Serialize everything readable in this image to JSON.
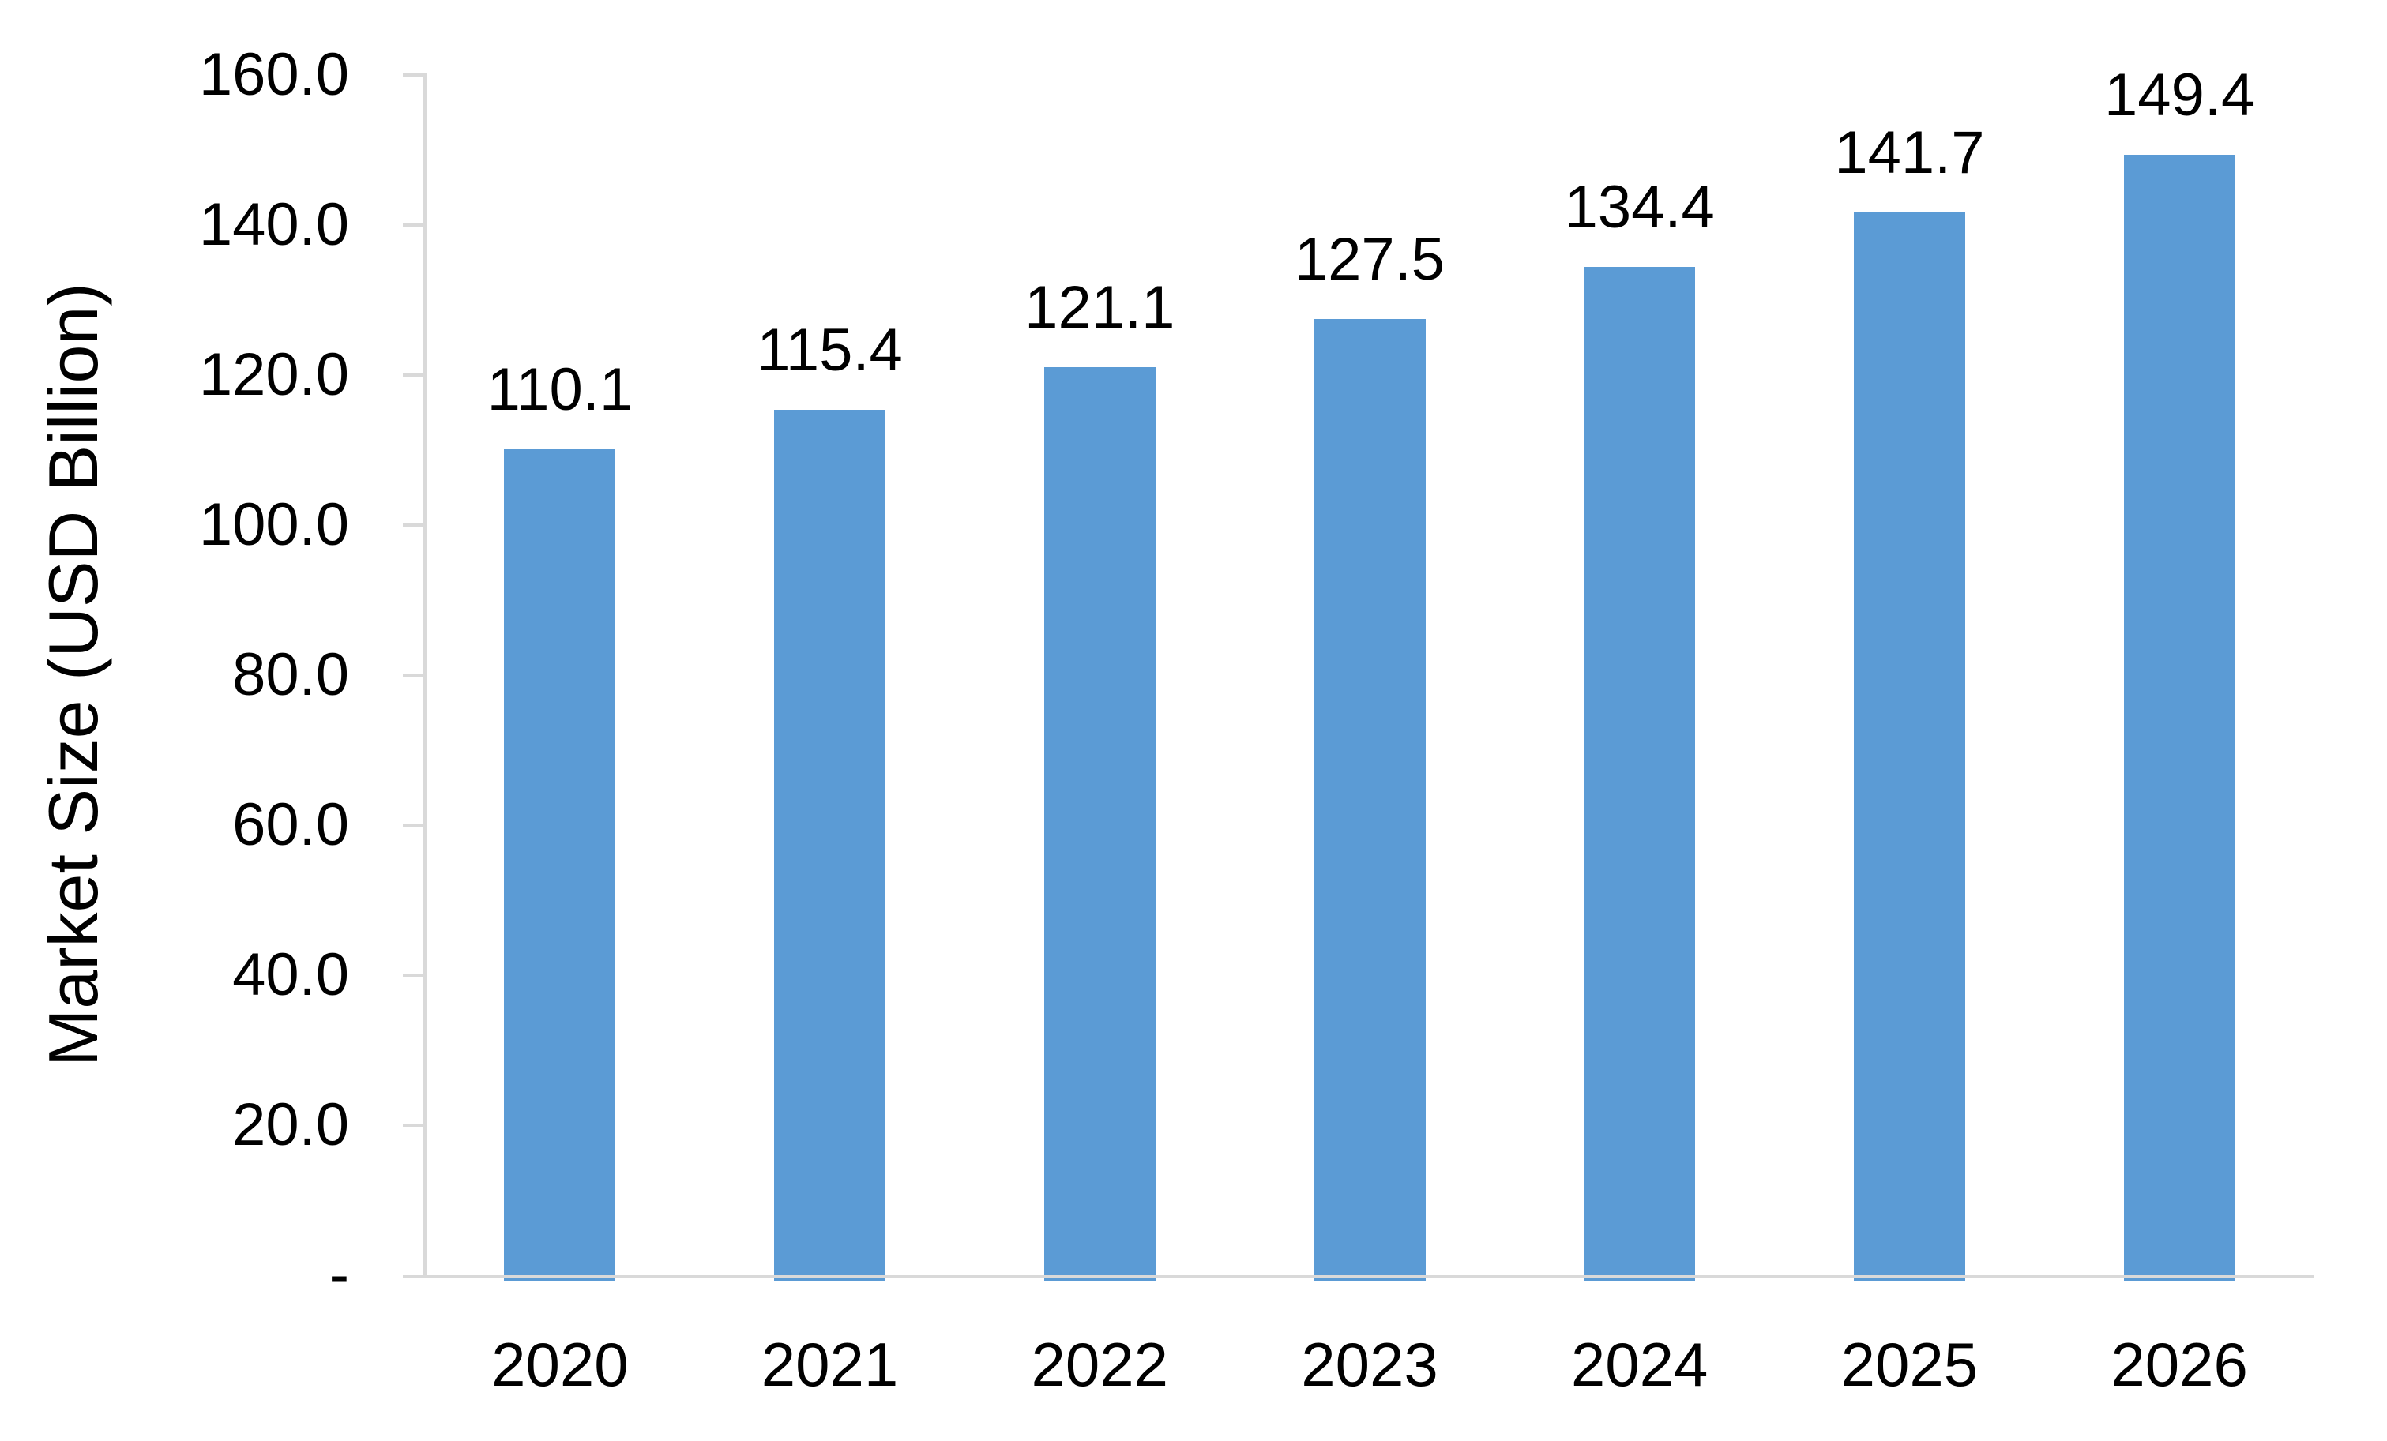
{
  "chart_data": {
    "type": "bar",
    "title": "",
    "ylabel": "Market Size (USD Billion)",
    "xlabel": "",
    "categories": [
      "2020",
      "2021",
      "2022",
      "2023",
      "2024",
      "2025",
      "2026"
    ],
    "values": [
      110.1,
      115.4,
      121.1,
      127.5,
      134.4,
      141.7,
      149.4
    ],
    "value_labels": [
      "110.1",
      "115.4",
      "121.1",
      "127.5",
      "134.4",
      "141.7",
      "149.4"
    ],
    "ylim": [
      0,
      160
    ],
    "yticks": [
      {
        "value": 160,
        "label": "160.0"
      },
      {
        "value": 140,
        "label": "140.0"
      },
      {
        "value": 120,
        "label": "120.0"
      },
      {
        "value": 100,
        "label": "100.0"
      },
      {
        "value": 80,
        "label": "80.0"
      },
      {
        "value": 60,
        "label": "60.0"
      },
      {
        "value": 40,
        "label": "40.0"
      },
      {
        "value": 20,
        "label": "20.0"
      },
      {
        "value": 0,
        "label": "-"
      }
    ],
    "grid": false,
    "legend": false,
    "colors": {
      "bar": "#5B9BD5",
      "axis_line": "#D9D9D9",
      "text": "#000000",
      "background": "#FFFFFF"
    }
  }
}
